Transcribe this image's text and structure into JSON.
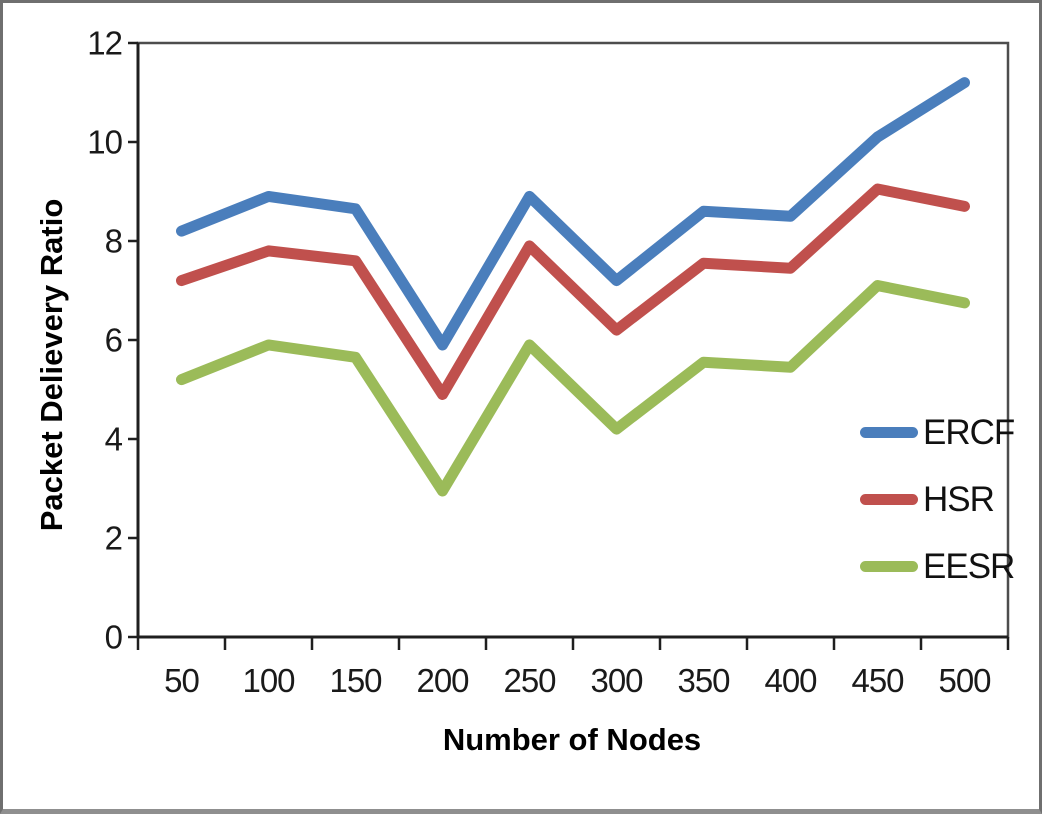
{
  "chart_data": {
    "type": "line",
    "title": "",
    "xlabel": "Number of Nodes",
    "ylabel": "Packet Delievery Ratio",
    "categories": [
      "50",
      "100",
      "150",
      "200",
      "250",
      "300",
      "350",
      "400",
      "450",
      "500"
    ],
    "series": [
      {
        "name": "ERCF",
        "color": "#4a7ebc",
        "values": [
          8.2,
          8.9,
          8.65,
          5.9,
          8.9,
          7.2,
          8.6,
          8.5,
          10.1,
          11.2
        ]
      },
      {
        "name": "HSR",
        "color": "#c0504d",
        "values": [
          7.2,
          7.8,
          7.6,
          4.9,
          7.9,
          6.2,
          7.55,
          7.45,
          9.05,
          8.7
        ]
      },
      {
        "name": "EESR",
        "color": "#9bbb59",
        "values": [
          5.2,
          5.9,
          5.65,
          2.95,
          5.9,
          4.2,
          5.55,
          5.45,
          7.1,
          6.75
        ]
      }
    ],
    "ylim": [
      0,
      12
    ],
    "yticks": [
      0,
      2,
      4,
      6,
      8,
      10,
      12
    ],
    "grid": false,
    "legend_position": "inside-right",
    "line_width": 11,
    "axis_color": "#1f1f1f",
    "plot_border_color": "#4d4d4d",
    "frame_border_color": "#6f6f6f"
  }
}
